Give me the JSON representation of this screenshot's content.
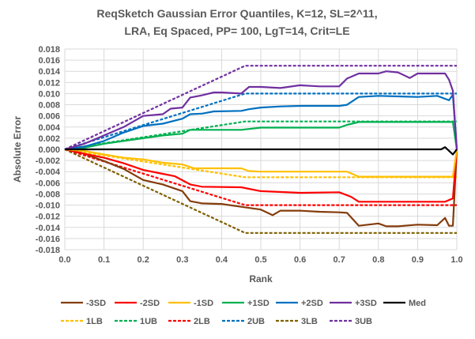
{
  "chart_data": {
    "type": "line",
    "title": [
      "ReqSketch Gaussian Error Quantiles, K=12, SL=2^11,",
      "LRA, Eq Spaced, PP= 100, LgT=14, Crit=LE"
    ],
    "xlabel": "Rank",
    "ylabel": "Absolute Error",
    "xlim": [
      0,
      1
    ],
    "ylim": [
      -0.018,
      0.018
    ],
    "xticks": [
      "0.0",
      "0.1",
      "0.2",
      "0.3",
      "0.4",
      "0.5",
      "0.6",
      "0.7",
      "0.8",
      "0.9",
      "1.0"
    ],
    "yticks": [
      "0.018",
      "0.016",
      "0.014",
      "0.012",
      "0.010",
      "0.008",
      "0.006",
      "0.004",
      "0.002",
      "0.000",
      "-0.002",
      "-0.004",
      "-0.006",
      "-0.008",
      "-0.010",
      "-0.012",
      "-0.014",
      "-0.016",
      "-0.018"
    ],
    "grid": true,
    "legend_position": "bottom",
    "series": [
      {
        "name": "-3SD",
        "color": "#843C0C",
        "dash": false,
        "points": [
          [
            0,
            0
          ],
          [
            0.05,
            -0.0008
          ],
          [
            0.1,
            -0.0021
          ],
          [
            0.15,
            -0.0035
          ],
          [
            0.2,
            -0.0055
          ],
          [
            0.25,
            -0.0063
          ],
          [
            0.3,
            -0.0075
          ],
          [
            0.32,
            -0.0093
          ],
          [
            0.35,
            -0.0097
          ],
          [
            0.4,
            -0.0098
          ],
          [
            0.45,
            -0.0103
          ],
          [
            0.5,
            -0.0108
          ],
          [
            0.53,
            -0.0118
          ],
          [
            0.55,
            -0.011
          ],
          [
            0.6,
            -0.011
          ],
          [
            0.65,
            -0.0112
          ],
          [
            0.7,
            -0.0113
          ],
          [
            0.72,
            -0.0114
          ],
          [
            0.75,
            -0.0137
          ],
          [
            0.8,
            -0.0133
          ],
          [
            0.82,
            -0.0138
          ],
          [
            0.85,
            -0.0138
          ],
          [
            0.9,
            -0.0135
          ],
          [
            0.95,
            -0.0136
          ],
          [
            0.97,
            -0.0123
          ],
          [
            0.98,
            -0.0137
          ],
          [
            0.99,
            -0.0137
          ],
          [
            1,
            0
          ]
        ]
      },
      {
        "name": "-2SD",
        "color": "#FF0000",
        "dash": false,
        "points": [
          [
            0,
            0
          ],
          [
            0.05,
            -0.0008
          ],
          [
            0.1,
            -0.0015
          ],
          [
            0.15,
            -0.0025
          ],
          [
            0.2,
            -0.0037
          ],
          [
            0.25,
            -0.0044
          ],
          [
            0.28,
            -0.0048
          ],
          [
            0.32,
            -0.0063
          ],
          [
            0.35,
            -0.0067
          ],
          [
            0.45,
            -0.0068
          ],
          [
            0.5,
            -0.0075
          ],
          [
            0.6,
            -0.0078
          ],
          [
            0.7,
            -0.0077
          ],
          [
            0.73,
            -0.0085
          ],
          [
            0.75,
            -0.0094
          ],
          [
            0.97,
            -0.0094
          ],
          [
            0.99,
            -0.0088
          ],
          [
            1,
            0
          ]
        ]
      },
      {
        "name": "-1SD",
        "color": "#FFC000",
        "dash": false,
        "points": [
          [
            0,
            0
          ],
          [
            0.05,
            -0.0003
          ],
          [
            0.1,
            -0.0009
          ],
          [
            0.15,
            -0.0015
          ],
          [
            0.2,
            -0.0018
          ],
          [
            0.25,
            -0.0024
          ],
          [
            0.3,
            -0.0027
          ],
          [
            0.33,
            -0.0034
          ],
          [
            0.45,
            -0.0034
          ],
          [
            0.47,
            -0.0039
          ],
          [
            0.5,
            -0.004
          ],
          [
            0.72,
            -0.004
          ],
          [
            0.75,
            -0.0049
          ],
          [
            0.99,
            -0.0049
          ],
          [
            1,
            0
          ]
        ]
      },
      {
        "name": "+1SD",
        "color": "#00B050",
        "dash": false,
        "points": [
          [
            0,
            0
          ],
          [
            0.05,
            0.0003
          ],
          [
            0.1,
            0.001
          ],
          [
            0.15,
            0.0015
          ],
          [
            0.2,
            0.002
          ],
          [
            0.25,
            0.0025
          ],
          [
            0.3,
            0.0028
          ],
          [
            0.32,
            0.0035
          ],
          [
            0.45,
            0.0035
          ],
          [
            0.5,
            0.0039
          ],
          [
            0.7,
            0.0039
          ],
          [
            0.72,
            0.0044
          ],
          [
            0.75,
            0.0049
          ],
          [
            0.99,
            0.0049
          ],
          [
            1,
            0
          ]
        ]
      },
      {
        "name": "+2SD",
        "color": "#0070C0",
        "dash": false,
        "points": [
          [
            0,
            0
          ],
          [
            0.05,
            0.0005
          ],
          [
            0.1,
            0.0015
          ],
          [
            0.15,
            0.003
          ],
          [
            0.2,
            0.0042
          ],
          [
            0.25,
            0.0046
          ],
          [
            0.3,
            0.0055
          ],
          [
            0.32,
            0.0063
          ],
          [
            0.35,
            0.0064
          ],
          [
            0.38,
            0.0068
          ],
          [
            0.45,
            0.0069
          ],
          [
            0.47,
            0.0072
          ],
          [
            0.5,
            0.0075
          ],
          [
            0.55,
            0.0077
          ],
          [
            0.6,
            0.0078
          ],
          [
            0.7,
            0.0078
          ],
          [
            0.72,
            0.008
          ],
          [
            0.75,
            0.0094
          ],
          [
            0.8,
            0.0096
          ],
          [
            0.9,
            0.0094
          ],
          [
            0.95,
            0.0096
          ],
          [
            0.98,
            0.0088
          ],
          [
            0.99,
            0.0098
          ],
          [
            1,
            0
          ]
        ]
      },
      {
        "name": "+3SD",
        "color": "#7030A0",
        "dash": false,
        "points": [
          [
            0,
            0
          ],
          [
            0.05,
            0.001
          ],
          [
            0.1,
            0.0025
          ],
          [
            0.15,
            0.004
          ],
          [
            0.2,
            0.006
          ],
          [
            0.25,
            0.0063
          ],
          [
            0.27,
            0.0073
          ],
          [
            0.3,
            0.0075
          ],
          [
            0.32,
            0.0093
          ],
          [
            0.35,
            0.0097
          ],
          [
            0.38,
            0.0102
          ],
          [
            0.4,
            0.0102
          ],
          [
            0.45,
            0.01
          ],
          [
            0.47,
            0.0112
          ],
          [
            0.5,
            0.0112
          ],
          [
            0.55,
            0.011
          ],
          [
            0.6,
            0.0115
          ],
          [
            0.65,
            0.0113
          ],
          [
            0.7,
            0.0113
          ],
          [
            0.72,
            0.0127
          ],
          [
            0.75,
            0.0136
          ],
          [
            0.8,
            0.0136
          ],
          [
            0.82,
            0.014
          ],
          [
            0.85,
            0.0138
          ],
          [
            0.88,
            0.0128
          ],
          [
            0.9,
            0.0136
          ],
          [
            0.95,
            0.0136
          ],
          [
            0.97,
            0.0136
          ],
          [
            0.98,
            0.0125
          ],
          [
            0.99,
            0.0105
          ],
          [
            1,
            0
          ]
        ]
      },
      {
        "name": "Med",
        "color": "#000000",
        "dash": false,
        "points": [
          [
            0,
            0
          ],
          [
            0.96,
            0
          ],
          [
            0.97,
            0.0004
          ],
          [
            0.99,
            -0.0009
          ],
          [
            1,
            0
          ]
        ]
      },
      {
        "name": "1LB",
        "color": "#FFC000",
        "dash": true,
        "points": [
          [
            0,
            0
          ],
          [
            0.46,
            -0.005
          ],
          [
            1,
            -0.005
          ]
        ]
      },
      {
        "name": "1UB",
        "color": "#00B050",
        "dash": true,
        "points": [
          [
            0,
            0
          ],
          [
            0.46,
            0.005
          ],
          [
            1,
            0.005
          ]
        ]
      },
      {
        "name": "2LB",
        "color": "#FF0000",
        "dash": true,
        "points": [
          [
            0,
            0
          ],
          [
            0.46,
            -0.01
          ],
          [
            1,
            -0.01
          ]
        ]
      },
      {
        "name": "2UB",
        "color": "#0070C0",
        "dash": true,
        "points": [
          [
            0,
            0
          ],
          [
            0.46,
            0.01
          ],
          [
            1,
            0.01
          ]
        ]
      },
      {
        "name": "3LB",
        "color": "#7F6000",
        "dash": true,
        "points": [
          [
            0,
            0
          ],
          [
            0.46,
            -0.015
          ],
          [
            1,
            -0.015
          ]
        ]
      },
      {
        "name": "3UB",
        "color": "#7030A0",
        "dash": true,
        "points": [
          [
            0,
            0
          ],
          [
            0.46,
            0.015
          ],
          [
            1,
            0.015
          ]
        ]
      }
    ]
  }
}
